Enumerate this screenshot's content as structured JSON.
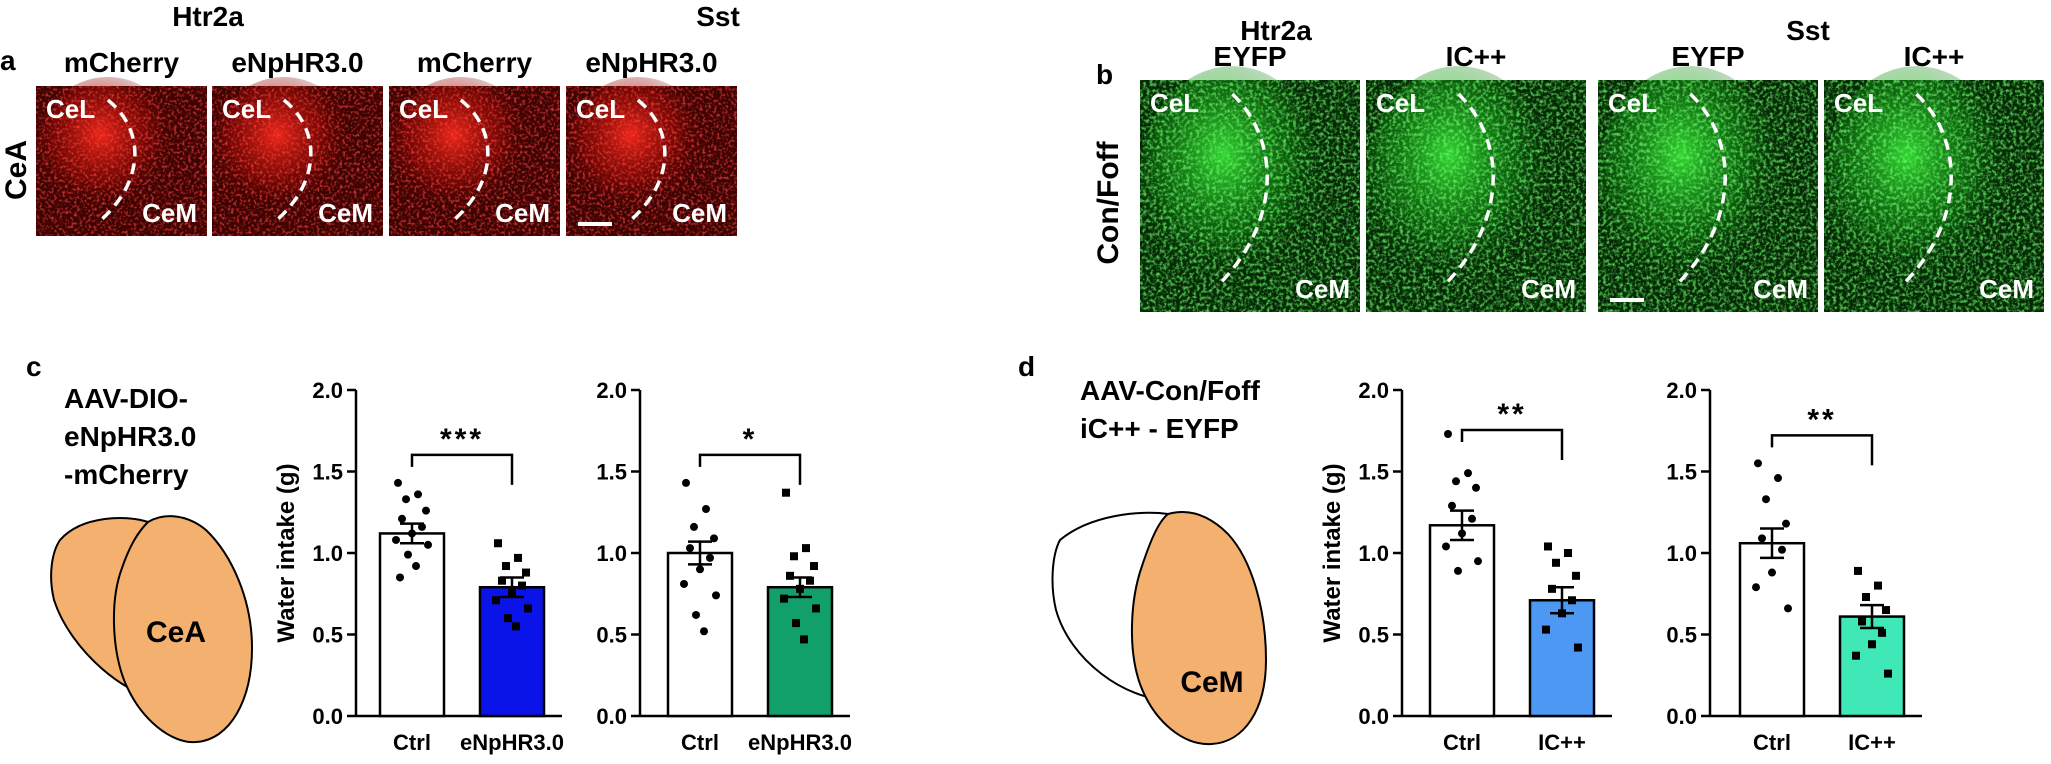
{
  "panel_letters": {
    "a": "a",
    "b": "b",
    "c": "c",
    "d": "d"
  },
  "panel_a": {
    "row_label": "CeA",
    "group_labels": [
      "Htr2a",
      "Sst"
    ],
    "column_labels": [
      "mCherry",
      "eNpHR3.0",
      "mCherry",
      "eNpHR3.0"
    ],
    "region_labels": {
      "top": "CeL",
      "bottom": "CeM"
    },
    "image_color": "#e01010"
  },
  "panel_b": {
    "row_label": "Con/Foff",
    "group_labels": [
      "Htr2a",
      "Sst"
    ],
    "column_labels": [
      "EYFP",
      "IC++",
      "EYFP",
      "IC++"
    ],
    "region_labels": {
      "top": "CeL",
      "bottom": "CeM"
    },
    "image_color": "#2ad82a"
  },
  "panel_c": {
    "construct_lines": [
      "AAV-DIO-",
      "eNpHR3.0",
      "-mCherry"
    ],
    "region_label": "CeA"
  },
  "panel_d": {
    "construct_lines": [
      "AAV-Con/Foff",
      "iC++ - EYFP"
    ],
    "region_label": "CeM"
  },
  "region_fill": "#f4b06e",
  "chart_data": [
    {
      "type": "bar",
      "categories": [
        "Ctrl",
        "eNpHR3.0"
      ],
      "values": [
        1.12,
        0.79
      ],
      "errors": [
        0.06,
        0.06
      ],
      "colors": [
        "#ffffff",
        "#0a14e8"
      ],
      "points": [
        [
          1.43,
          1.36,
          1.33,
          1.26,
          1.21,
          1.16,
          1.12,
          1.08,
          1.05,
          0.99,
          0.92,
          0.85
        ],
        [
          1.06,
          0.97,
          0.92,
          0.88,
          0.83,
          0.8,
          0.76,
          0.71,
          0.66,
          0.6,
          0.55
        ]
      ],
      "markers": [
        "circle",
        "square"
      ],
      "ylabel": "Water intake (g)",
      "ylim": [
        0,
        2.0
      ],
      "yticks": [
        "0.0",
        "0.5",
        "1.0",
        "1.5",
        "2.0"
      ],
      "significance": "***"
    },
    {
      "type": "bar",
      "categories": [
        "Ctrl",
        "eNpHR3.0"
      ],
      "values": [
        1.0,
        0.79
      ],
      "errors": [
        0.07,
        0.06
      ],
      "colors": [
        "#ffffff",
        "#12a06a"
      ],
      "points": [
        [
          1.43,
          1.27,
          1.16,
          1.09,
          1.03,
          0.97,
          0.9,
          0.81,
          0.74,
          0.62,
          0.52
        ],
        [
          1.37,
          1.03,
          0.98,
          0.92,
          0.86,
          0.83,
          0.78,
          0.72,
          0.66,
          0.57,
          0.47
        ]
      ],
      "markers": [
        "circle",
        "square"
      ],
      "ylabel": "",
      "ylim": [
        0,
        2.0
      ],
      "yticks": [
        "0.0",
        "0.5",
        "1.0",
        "1.5",
        "2.0"
      ],
      "significance": "*"
    },
    {
      "type": "bar",
      "categories": [
        "Ctrl",
        "IC++"
      ],
      "values": [
        1.17,
        0.71
      ],
      "errors": [
        0.09,
        0.08
      ],
      "colors": [
        "#ffffff",
        "#4c98f2"
      ],
      "points": [
        [
          1.73,
          1.49,
          1.44,
          1.4,
          1.29,
          1.21,
          1.12,
          1.04,
          0.95,
          0.89
        ],
        [
          1.04,
          1.0,
          0.94,
          0.86,
          0.78,
          0.71,
          0.63,
          0.53,
          0.42
        ]
      ],
      "markers": [
        "circle",
        "square"
      ],
      "ylabel": "Water intake (g)",
      "ylim": [
        0,
        2.0
      ],
      "yticks": [
        "0.0",
        "0.5",
        "1.0",
        "1.5",
        "2.0"
      ],
      "significance": "**"
    },
    {
      "type": "bar",
      "categories": [
        "Ctrl",
        "IC++"
      ],
      "values": [
        1.06,
        0.61
      ],
      "errors": [
        0.09,
        0.07
      ],
      "colors": [
        "#ffffff",
        "#3fe8b6"
      ],
      "points": [
        [
          1.55,
          1.46,
          1.33,
          1.18,
          1.09,
          1.02,
          0.88,
          0.79,
          0.66
        ],
        [
          0.89,
          0.8,
          0.73,
          0.65,
          0.58,
          0.51,
          0.44,
          0.37,
          0.26
        ]
      ],
      "markers": [
        "circle",
        "square"
      ],
      "ylabel": "",
      "ylim": [
        0,
        2.0
      ],
      "yticks": [
        "0.0",
        "0.5",
        "1.0",
        "1.5",
        "2.0"
      ],
      "significance": "**"
    }
  ]
}
